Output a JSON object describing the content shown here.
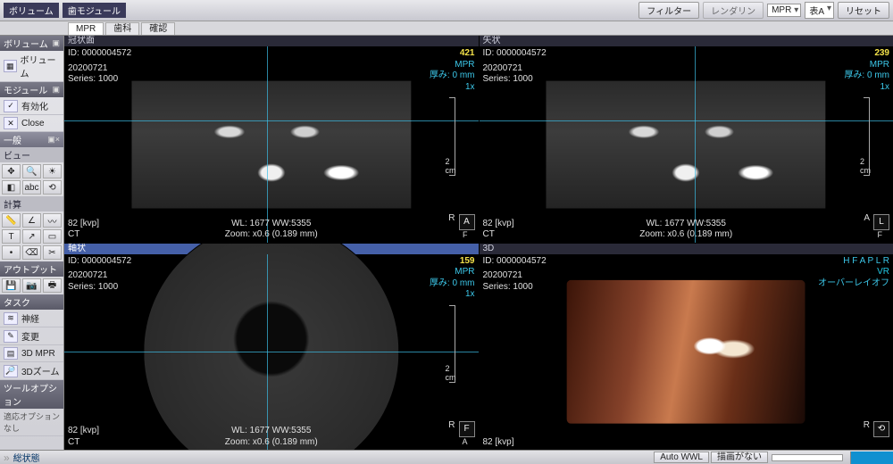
{
  "topbar": {
    "module_label": "歯モジュール",
    "volume_label": "ボリューム",
    "filter_btn": "フィルター",
    "render_btn": "レンダリン",
    "combo1": "MPR",
    "combo2": "表A",
    "reset_btn": "リセット"
  },
  "tabs": {
    "items": [
      "MPR",
      "歯科",
      "確認"
    ],
    "active": 0
  },
  "side": {
    "sec_volume": "ボリューム",
    "volume_item": "ボリューム",
    "sec_module": "モジュール",
    "activate": "有効化",
    "close": "Close",
    "sec_general": "一般",
    "sec_view": "ビュー",
    "sec_calc": "計算",
    "sec_output": "アウトプット",
    "sec_task": "タスク",
    "task_items": [
      "神経",
      "変更",
      "3D MPR",
      "3Dズーム"
    ],
    "sec_toolopt": "ツールオプション",
    "toolopt_none": "適応オプションなし"
  },
  "viewports": [
    {
      "title": "冠状面",
      "selected": false,
      "shape": "rect",
      "id": "ID: 0000004572",
      "date": "20200721",
      "series": "Series: 1000",
      "slice": "421",
      "mode": "MPR",
      "thick": "厚み: 0 mm",
      "zoom": "1x",
      "kvp": "82 [kvp]",
      "modality": "CT",
      "wlww": "WL: 1677 WW:5355",
      "zoom_info": "Zoom: x0.6 (0.189 mm)",
      "scale": "2 cm",
      "orient_box": "A",
      "orient_r": "R",
      "orient_f": "F",
      "cross_h": 38,
      "cross_v": 49
    },
    {
      "title": "矢状",
      "selected": false,
      "shape": "rect",
      "id": "ID: 0000004572",
      "date": "20200721",
      "series": "Series: 1000",
      "slice": "239",
      "mode": "MPR",
      "thick": "厚み: 0 mm",
      "zoom": "1x",
      "kvp": "82 [kvp]",
      "modality": "CT",
      "wlww": "WL: 1677 WW:5355",
      "zoom_info": "Zoom: x0.6 (0.189 mm)",
      "scale": "2 cm",
      "orient_box": "L",
      "orient_r": "A",
      "orient_f": "F",
      "cross_h": 38,
      "cross_v": 52
    },
    {
      "title": "軸状",
      "selected": true,
      "shape": "circle",
      "id": "ID: 0000004572",
      "date": "20200721",
      "series": "Series: 1000",
      "slice": "159",
      "mode": "MPR",
      "thick": "厚み: 0 mm",
      "zoom": "1x",
      "kvp": "82 [kvp]",
      "modality": "CT",
      "wlww": "WL: 1677 WW:5355",
      "zoom_info": "Zoom: x0.6 (0.189 mm)",
      "scale": "2 cm",
      "orient_box": "F",
      "orient_r": "R",
      "orient_f": "A",
      "cross_h": 50,
      "cross_v": 49
    },
    {
      "title": "3D",
      "selected": false,
      "shape": "vr",
      "id": "ID: 0000004572",
      "date": "20200721",
      "series": "Series: 1000",
      "hfa": "H F A P L R",
      "render": "VR",
      "overlay": "オーバーレイオフ",
      "kvp": "82 [kvp]",
      "orient_box": "⟲",
      "orient_r": "R"
    }
  ],
  "status": {
    "left_tag": "総状態",
    "auto_wwl": "Auto WWL",
    "no_image": "描画がない"
  },
  "colors": {
    "accent": "#3cc8ea",
    "slice": "#f4e24a",
    "panel_bg": "#000000"
  }
}
